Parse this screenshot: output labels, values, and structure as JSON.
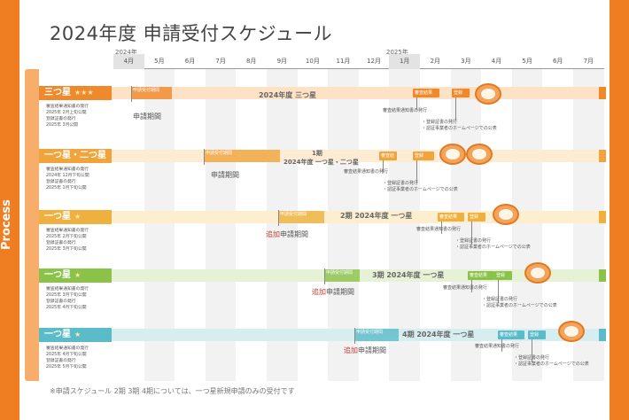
{
  "title": "2024年度 申請受付スケジュール",
  "years": {
    "y2024": "2024年",
    "y2025": "2025年"
  },
  "months": [
    "4月",
    "5月",
    "6月",
    "7月",
    "8月",
    "9月",
    "10月",
    "11月",
    "12月",
    "1月",
    "2月",
    "3月",
    "4月",
    "5月",
    "6月",
    "7月"
  ],
  "process_label": "Process",
  "rows": [
    {
      "label": "三つ星",
      "stars": "★★★",
      "color": "#ef8a2c",
      "band_color": "#fde2c6",
      "notes": [
        "審査結果通知書の発行",
        "2025年 2月上旬公開",
        "登録証書の発行",
        "2025年 3月公開"
      ],
      "phase_text": "申請受付期間",
      "period_text": "申請期間",
      "period_prefix": "",
      "center_text": "2024年度 三つ星",
      "chips": [
        "審査結果",
        "登録"
      ],
      "callouts": [
        "審査結果通知書の発行",
        "・登録証書の発行",
        "・認証事業者のホームページでの公表"
      ]
    },
    {
      "label": "一つ星・二つ星",
      "stars": "",
      "color": "#f1a33c",
      "band_color": "#fdebd4",
      "notes": [
        "審査結果通知書の発行",
        "2024年 12月下旬公開",
        "登録証書の発行",
        "2025年 1月下旬公開"
      ],
      "phase_text": "申請受付期間",
      "period_text": "申請期間",
      "period_prefix": "",
      "center_text": "1期",
      "center_text2": "2024年度 一つ星・二つ星",
      "chips": [
        "審査結果",
        "登録"
      ],
      "callouts": [
        "審査結果通知書の発行",
        "・登録証書の発行",
        "・認証事業者のホームページでの公表"
      ]
    },
    {
      "label": "一つ星",
      "stars": "★",
      "color": "#eeb13f",
      "band_color": "#fdeed0",
      "notes": [
        "審査結果通知書の発行",
        "2025年 2月下旬公開",
        "登録証書の発行",
        "2025年 3月下旬公開"
      ],
      "phase_text": "申請受付期間",
      "period_text": "申請期間",
      "period_prefix": "追加",
      "center_text": "2期 2024年度 一つ星",
      "chips": [
        "審査結果",
        "登録"
      ],
      "callouts": [
        "審査結果通知書の発行",
        "・登録証書の発行",
        "・認証事業者のホームページでの公表"
      ]
    },
    {
      "label": "一つ星",
      "stars": "★",
      "color": "#8bc24a",
      "band_color": "#e6f1d6",
      "notes": [
        "審査結果通知書の発行",
        "2025年 3月下旬公開",
        "登録証書の発行",
        "2025年 4月下旬公開"
      ],
      "phase_text": "申請受付期間",
      "period_text": "申請期間",
      "period_prefix": "追加",
      "center_text": "3期 2024年度 一つ星",
      "chips": [
        "審査結果",
        "登録"
      ],
      "callouts": [
        "審査結果通知書の発行",
        "・登録証書の発行",
        "・認証事業者のホームページでの公表"
      ]
    },
    {
      "label": "一つ星",
      "stars": "★",
      "color": "#5bbcc9",
      "band_color": "#d7eef1",
      "notes": [
        "審査結果通知書の発行",
        "2025年 4月下旬公開",
        "登録証書の発行",
        "2025年 5月下旬公開"
      ],
      "phase_text": "申請受付期間",
      "period_text": "申請期間",
      "period_prefix": "追加",
      "center_text": "4期 2024年度 一つ星",
      "chips": [
        "審査結果",
        "登録"
      ],
      "callouts": [
        "審査結果通知書の発行",
        "・登録証書の発行",
        "・認証事業者のホームページでの公表"
      ]
    }
  ],
  "footer": "※申請スケジュール 2期 3期 4期については、一つ星新規申請のみの受付です"
}
